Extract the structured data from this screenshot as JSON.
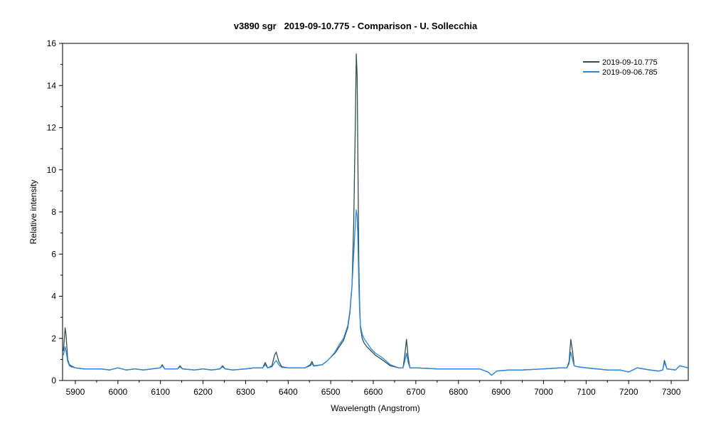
{
  "chart_data": {
    "type": "line",
    "title": "v3890 sgr   2019-09-10.775 - Comparison - U. Sollecchia",
    "xlabel": "Wavelength (Angstrom)",
    "ylabel": "Relative intensity",
    "xlim": [
      5870,
      7340
    ],
    "ylim": [
      0,
      16
    ],
    "xticks": [
      5900,
      6000,
      6100,
      6200,
      6300,
      6400,
      6500,
      6600,
      6700,
      6800,
      6900,
      7000,
      7100,
      7200,
      7300
    ],
    "yticks": [
      0,
      2,
      4,
      6,
      8,
      10,
      12,
      14,
      16
    ],
    "grid": false,
    "legend_position": "top-right",
    "series": [
      {
        "name": "2019-09-10.775",
        "color": "#2f4f4f",
        "x": [
          5872,
          5876,
          5878,
          5882,
          5886,
          5890,
          5900,
          5920,
          5940,
          5960,
          5980,
          6000,
          6020,
          6040,
          6060,
          6080,
          6100,
          6104,
          6110,
          6140,
          6146,
          6152,
          6180,
          6200,
          6220,
          6240,
          6246,
          6252,
          6270,
          6300,
          6320,
          6340,
          6346,
          6352,
          6362,
          6368,
          6372,
          6378,
          6385,
          6400,
          6420,
          6440,
          6452,
          6456,
          6460,
          6480,
          6490,
          6500,
          6510,
          6520,
          6530,
          6540,
          6545,
          6550,
          6554,
          6558,
          6560,
          6562,
          6564,
          6566,
          6568,
          6570,
          6574,
          6578,
          6585,
          6595,
          6605,
          6620,
          6640,
          6660,
          6670,
          6674,
          6678,
          6682,
          6686,
          6700,
          6750,
          6800,
          6850,
          6870,
          6878,
          6890,
          6920,
          6950,
          7000,
          7040,
          7055,
          7060,
          7064,
          7068,
          7072,
          7080,
          7100,
          7150,
          7180,
          7200,
          7220,
          7250,
          7270,
          7280,
          7284,
          7290,
          7310,
          7320,
          7340
        ],
        "y": [
          1.4,
          2.5,
          2.2,
          1.0,
          0.75,
          0.7,
          0.6,
          0.55,
          0.55,
          0.55,
          0.5,
          0.6,
          0.5,
          0.55,
          0.5,
          0.55,
          0.6,
          0.75,
          0.55,
          0.55,
          0.7,
          0.55,
          0.5,
          0.55,
          0.5,
          0.55,
          0.7,
          0.55,
          0.5,
          0.55,
          0.6,
          0.6,
          0.85,
          0.6,
          0.7,
          1.2,
          1.35,
          0.9,
          0.65,
          0.6,
          0.6,
          0.6,
          0.75,
          0.9,
          0.7,
          0.75,
          0.9,
          1.1,
          1.3,
          1.6,
          1.9,
          2.5,
          3.2,
          4.5,
          7.5,
          12.5,
          15.5,
          14.5,
          10.0,
          5.5,
          3.5,
          2.5,
          2.0,
          1.8,
          1.6,
          1.4,
          1.2,
          1.0,
          0.7,
          0.6,
          0.6,
          1.2,
          1.95,
          1.1,
          0.6,
          0.6,
          0.55,
          0.55,
          0.55,
          0.4,
          0.25,
          0.45,
          0.5,
          0.5,
          0.55,
          0.6,
          0.6,
          0.9,
          1.95,
          1.4,
          0.7,
          0.65,
          0.6,
          0.5,
          0.5,
          0.4,
          0.6,
          0.5,
          0.45,
          0.5,
          0.95,
          0.55,
          0.5,
          0.7,
          0.6
        ]
      },
      {
        "name": "2019-09-06.785",
        "color": "#2e86de",
        "x": [
          5872,
          5876,
          5878,
          5882,
          5886,
          5890,
          5900,
          5920,
          5940,
          5960,
          5980,
          6000,
          6020,
          6040,
          6060,
          6080,
          6100,
          6104,
          6110,
          6140,
          6146,
          6152,
          6180,
          6200,
          6220,
          6240,
          6246,
          6252,
          6270,
          6300,
          6320,
          6340,
          6346,
          6352,
          6362,
          6368,
          6372,
          6378,
          6385,
          6400,
          6420,
          6440,
          6452,
          6456,
          6460,
          6480,
          6490,
          6500,
          6510,
          6520,
          6530,
          6540,
          6545,
          6550,
          6554,
          6558,
          6560,
          6562,
          6564,
          6566,
          6568,
          6570,
          6574,
          6578,
          6585,
          6595,
          6605,
          6620,
          6640,
          6660,
          6670,
          6674,
          6678,
          6682,
          6686,
          6700,
          6750,
          6800,
          6850,
          6870,
          6878,
          6890,
          6920,
          6950,
          7000,
          7040,
          7055,
          7060,
          7064,
          7068,
          7072,
          7080,
          7100,
          7150,
          7180,
          7200,
          7220,
          7250,
          7270,
          7280,
          7284,
          7290,
          7310,
          7320,
          7340
        ],
        "y": [
          1.2,
          1.6,
          1.4,
          0.9,
          0.7,
          0.65,
          0.6,
          0.55,
          0.55,
          0.55,
          0.5,
          0.6,
          0.5,
          0.55,
          0.5,
          0.55,
          0.6,
          0.7,
          0.55,
          0.55,
          0.65,
          0.55,
          0.5,
          0.55,
          0.5,
          0.55,
          0.65,
          0.55,
          0.5,
          0.55,
          0.6,
          0.6,
          0.75,
          0.6,
          0.65,
          0.85,
          0.95,
          0.75,
          0.62,
          0.6,
          0.6,
          0.6,
          0.7,
          0.8,
          0.68,
          0.75,
          0.9,
          1.1,
          1.35,
          1.7,
          2.0,
          2.6,
          3.3,
          4.5,
          6.0,
          7.5,
          8.1,
          7.8,
          6.5,
          4.5,
          3.2,
          2.6,
          2.2,
          2.0,
          1.8,
          1.5,
          1.3,
          1.1,
          0.75,
          0.6,
          0.6,
          0.9,
          1.3,
          0.85,
          0.6,
          0.6,
          0.55,
          0.55,
          0.55,
          0.4,
          0.25,
          0.45,
          0.5,
          0.5,
          0.55,
          0.6,
          0.6,
          0.8,
          1.35,
          1.0,
          0.7,
          0.65,
          0.6,
          0.5,
          0.5,
          0.4,
          0.6,
          0.5,
          0.45,
          0.5,
          0.85,
          0.55,
          0.5,
          0.7,
          0.6
        ]
      }
    ]
  }
}
